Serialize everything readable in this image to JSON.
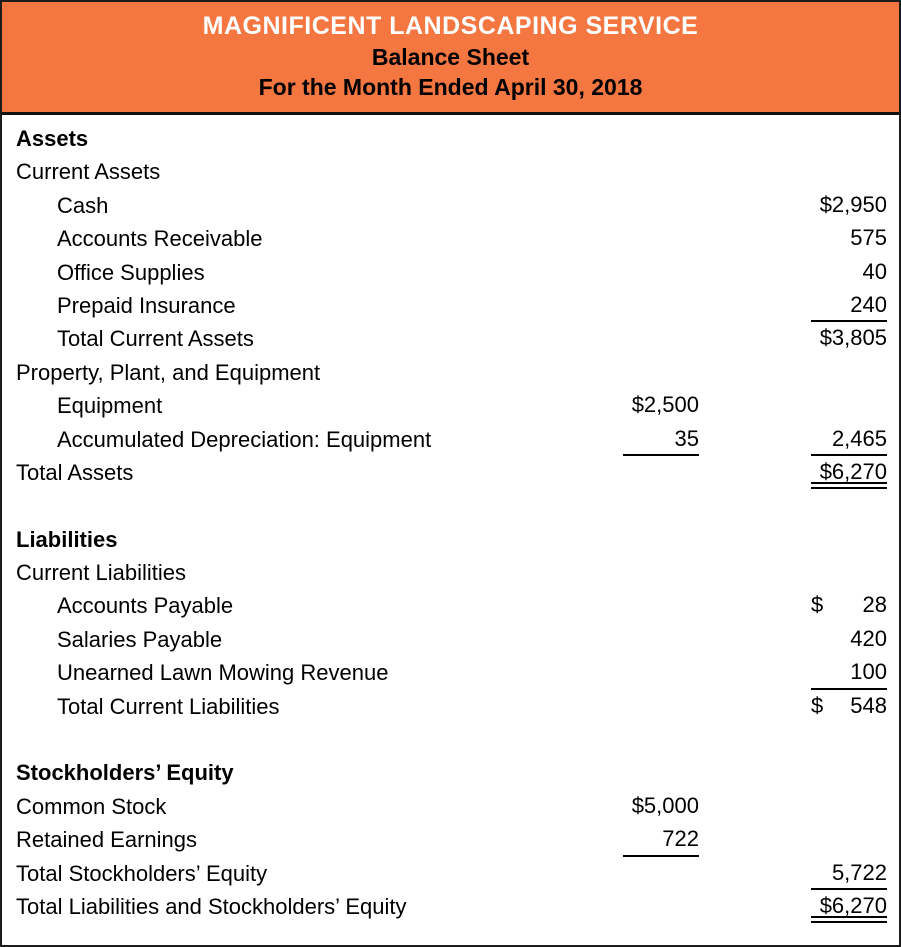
{
  "header": {
    "company": "MAGNIFICENT LANDSCAPING SERVICE",
    "report": "Balance Sheet",
    "period": "For the Month Ended April 30, 2018"
  },
  "colors": {
    "header_bg": "#F47641",
    "company_text": "#FFFFFF",
    "subtitle_text": "#000000",
    "border": "#1C1C1C",
    "rule": "#000000"
  },
  "rows": [
    {
      "label": "Assets",
      "indent": "0",
      "bold": "true"
    },
    {
      "label": "Current Assets",
      "indent": "0",
      "bold": "false"
    },
    {
      "label": "Cash",
      "indent": "1",
      "bold": "false",
      "right_v": "$2,950"
    },
    {
      "label": "Accounts Receivable",
      "indent": "1",
      "bold": "false",
      "right_v": "575"
    },
    {
      "label": "Office Supplies",
      "indent": "1",
      "bold": "false",
      "right_v": "40"
    },
    {
      "label": "Prepaid Insurance",
      "indent": "1",
      "bold": "false",
      "right_v": "240",
      "right_u": "single"
    },
    {
      "label": "Total Current Assets",
      "indent": "1",
      "bold": "false",
      "right_v": "$3,805"
    },
    {
      "label": "Property, Plant, and Equipment",
      "indent": "0",
      "bold": "false"
    },
    {
      "label": "Equipment",
      "indent": "1",
      "bold": "false",
      "mid_v": "$2,500"
    },
    {
      "label": "Accumulated Depreciation: Equipment",
      "indent": "1",
      "bold": "false",
      "mid_v": "35",
      "mid_u": "single",
      "right_v": "2,465",
      "right_u": "single"
    },
    {
      "label": "Total Assets",
      "indent": "0",
      "bold": "false",
      "right_v": "$6,270",
      "right_u": "double"
    },
    {
      "label": "Liabilities",
      "indent": "0",
      "bold": "true"
    },
    {
      "label": "Current Liabilities",
      "indent": "0",
      "bold": "false"
    },
    {
      "label": "Accounts Payable",
      "indent": "1",
      "bold": "false",
      "right_d": "$",
      "right_v": "28"
    },
    {
      "label": "Salaries Payable",
      "indent": "1",
      "bold": "false",
      "right_v": "420"
    },
    {
      "label": "Unearned Lawn Mowing Revenue",
      "indent": "1",
      "bold": "false",
      "right_v": "100",
      "right_u": "single"
    },
    {
      "label": "Total Current Liabilities",
      "indent": "1",
      "bold": "false",
      "right_d": "$",
      "right_v": "548"
    },
    {
      "label": "Stockholders’ Equity",
      "indent": "0",
      "bold": "true"
    },
    {
      "label": "Common Stock",
      "indent": "0",
      "bold": "false",
      "mid_v": "$5,000"
    },
    {
      "label": "Retained Earnings",
      "indent": "0",
      "bold": "false",
      "mid_v": "722",
      "mid_u": "single"
    },
    {
      "label": "Total Stockholders’ Equity",
      "indent": "0",
      "bold": "false",
      "right_v": "5,722",
      "right_u": "single"
    },
    {
      "label": "Total Liabilities and Stockholders’ Equity",
      "indent": "0",
      "bold": "false",
      "right_v": "$6,270",
      "right_u": "double"
    }
  ]
}
